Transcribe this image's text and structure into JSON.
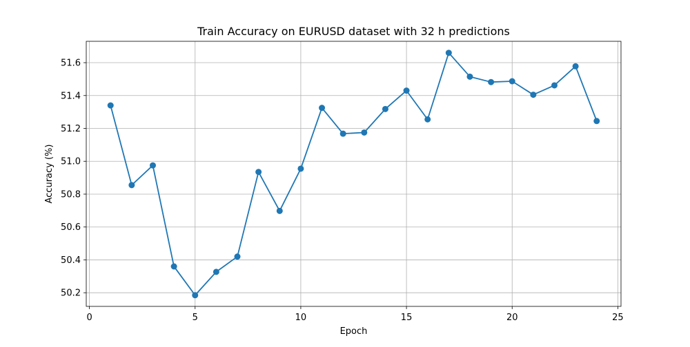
{
  "chart_data": {
    "type": "line",
    "title": "Train Accuracy on EURUSD dataset with 32 h predictions",
    "xlabel": "Epoch",
    "ylabel": "Accuracy (%)",
    "xlim": [
      -0.15,
      25.15
    ],
    "ylim": [
      50.117,
      51.73
    ],
    "xticks": [
      0,
      5,
      10,
      15,
      20,
      25
    ],
    "yticks": [
      50.2,
      50.4,
      50.6,
      50.8,
      51.0,
      51.2,
      51.4,
      51.6
    ],
    "grid": true,
    "series": [
      {
        "color": "#1f77b4",
        "marker": "circle",
        "x": [
          1,
          2,
          3,
          4,
          5,
          6,
          7,
          8,
          9,
          10,
          11,
          12,
          13,
          14,
          15,
          16,
          17,
          18,
          19,
          20,
          21,
          22,
          23,
          24
        ],
        "y": [
          51.34,
          50.855,
          50.975,
          50.36,
          50.185,
          50.327,
          50.42,
          50.935,
          50.698,
          50.955,
          51.325,
          51.168,
          51.175,
          51.318,
          51.43,
          51.255,
          51.66,
          51.515,
          51.482,
          51.487,
          51.405,
          51.462,
          51.578,
          51.245
        ]
      }
    ]
  }
}
